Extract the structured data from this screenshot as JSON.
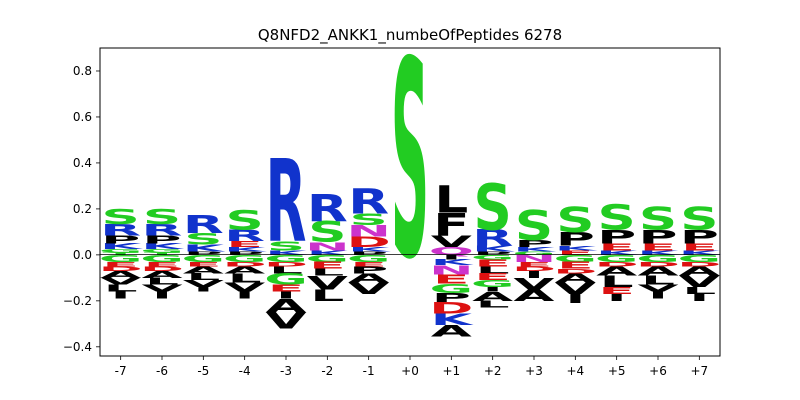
{
  "chart_data": {
    "type": "sequence-logo",
    "title": "Q8NFD2_ANKK1_numbeOfPeptides 6278",
    "xlabel": "",
    "ylabel": "",
    "ylim": [
      -0.44,
      0.9
    ],
    "yticks": [
      -0.4,
      -0.2,
      0.0,
      0.2,
      0.4,
      0.6,
      0.8
    ],
    "ytick_labels": [
      "−0.4",
      "−0.2",
      "0.0",
      "0.2",
      "0.4",
      "0.6",
      "0.8"
    ],
    "x_ticks": [
      "-7",
      "-6",
      "-5",
      "-4",
      "-3",
      "-2",
      "-1",
      "+0",
      "+1",
      "+2",
      "+3",
      "+4",
      "+5",
      "+6",
      "+7"
    ],
    "grid": false,
    "legend": "none",
    "residue_colors": {
      "S": "#22cc22",
      "G": "#22cc22",
      "T": "#22cc22",
      "Y": "#22cc22",
      "C": "#22cc22",
      "N": "#cc33cc",
      "Q": "#cc33cc",
      "R": "#1133cc",
      "K": "#1133cc",
      "H": "#1133cc",
      "D": "#dd1111",
      "E": "#dd1111",
      "P": "#000000",
      "L": "#000000",
      "V": "#000000",
      "A": "#000000",
      "I": "#000000",
      "M": "#000000",
      "F": "#000000",
      "W": "#000000"
    },
    "positions": [
      {
        "pos": "-7",
        "pos_stack": [
          {
            "aa": "S",
            "h": 0.065
          },
          {
            "aa": "R",
            "h": 0.05
          },
          {
            "aa": "P",
            "h": 0.035
          },
          {
            "aa": "K",
            "h": 0.025
          },
          {
            "aa": "G",
            "h": 0.015
          },
          {
            "aa": "T",
            "h": 0.01
          }
        ],
        "neg_stack": [
          {
            "aa": "G",
            "h": 0.03
          },
          {
            "aa": "E",
            "h": 0.02
          },
          {
            "aa": "D",
            "h": 0.02
          },
          {
            "aa": "A",
            "h": 0.03
          },
          {
            "aa": "V",
            "h": 0.03
          },
          {
            "aa": "L",
            "h": 0.03
          },
          {
            "aa": "I",
            "h": 0.03
          }
        ]
      },
      {
        "pos": "-6",
        "pos_stack": [
          {
            "aa": "S",
            "h": 0.065
          },
          {
            "aa": "R",
            "h": 0.05
          },
          {
            "aa": "P",
            "h": 0.035
          },
          {
            "aa": "K",
            "h": 0.025
          },
          {
            "aa": "G",
            "h": 0.015
          },
          {
            "aa": "T",
            "h": 0.01
          }
        ],
        "neg_stack": [
          {
            "aa": "G",
            "h": 0.03
          },
          {
            "aa": "E",
            "h": 0.02
          },
          {
            "aa": "D",
            "h": 0.02
          },
          {
            "aa": "A",
            "h": 0.03
          },
          {
            "aa": "L",
            "h": 0.03
          },
          {
            "aa": "V",
            "h": 0.03
          },
          {
            "aa": "I",
            "h": 0.03
          }
        ]
      },
      {
        "pos": "-5",
        "pos_stack": [
          {
            "aa": "R",
            "h": 0.08
          },
          {
            "aa": "S",
            "h": 0.05
          },
          {
            "aa": "K",
            "h": 0.03
          },
          {
            "aa": "P",
            "h": 0.015
          }
        ],
        "neg_stack": [
          {
            "aa": "G",
            "h": 0.03
          },
          {
            "aa": "E",
            "h": 0.02
          },
          {
            "aa": "A",
            "h": 0.03
          },
          {
            "aa": "L",
            "h": 0.03
          },
          {
            "aa": "V",
            "h": 0.03
          },
          {
            "aa": "I",
            "h": 0.02
          }
        ]
      },
      {
        "pos": "-4",
        "pos_stack": [
          {
            "aa": "S",
            "h": 0.085
          },
          {
            "aa": "R",
            "h": 0.05
          },
          {
            "aa": "E",
            "h": 0.025
          },
          {
            "aa": "K",
            "h": 0.02
          },
          {
            "aa": "P",
            "h": 0.015
          }
        ],
        "neg_stack": [
          {
            "aa": "G",
            "h": 0.03
          },
          {
            "aa": "D",
            "h": 0.02
          },
          {
            "aa": "A",
            "h": 0.03
          },
          {
            "aa": "L",
            "h": 0.04
          },
          {
            "aa": "V",
            "h": 0.04
          },
          {
            "aa": "I",
            "h": 0.03
          }
        ]
      },
      {
        "pos": "-3",
        "pos_stack": [
          {
            "aa": "R",
            "h": 0.36
          },
          {
            "aa": "S",
            "h": 0.04
          },
          {
            "aa": "K",
            "h": 0.02
          }
        ],
        "neg_stack": [
          {
            "aa": "G",
            "h": 0.03
          },
          {
            "aa": "D",
            "h": 0.02
          },
          {
            "aa": "L",
            "h": 0.03
          },
          {
            "aa": "G",
            "h": 0.05
          },
          {
            "aa": "E",
            "h": 0.03
          },
          {
            "aa": "I",
            "h": 0.03
          },
          {
            "aa": "A",
            "h": 0.06
          },
          {
            "aa": "V",
            "h": 0.07
          }
        ]
      },
      {
        "pos": "-2",
        "pos_stack": [
          {
            "aa": "R",
            "h": 0.12
          },
          {
            "aa": "S",
            "h": 0.09
          },
          {
            "aa": "N",
            "h": 0.035
          },
          {
            "aa": "K",
            "h": 0.02
          }
        ],
        "neg_stack": [
          {
            "aa": "G",
            "h": 0.03
          },
          {
            "aa": "E",
            "h": 0.03
          },
          {
            "aa": "L",
            "h": 0.03
          },
          {
            "aa": "V",
            "h": 0.06
          },
          {
            "aa": "L",
            "h": 0.05
          }
        ]
      },
      {
        "pos": "-1",
        "pos_stack": [
          {
            "aa": "R",
            "h": 0.11
          },
          {
            "aa": "S",
            "h": 0.05
          },
          {
            "aa": "N",
            "h": 0.05
          },
          {
            "aa": "D",
            "h": 0.045
          },
          {
            "aa": "K",
            "h": 0.02
          },
          {
            "aa": "P",
            "h": 0.015
          }
        ],
        "neg_stack": [
          {
            "aa": "G",
            "h": 0.03
          },
          {
            "aa": "E",
            "h": 0.02
          },
          {
            "aa": "P",
            "h": 0.03
          },
          {
            "aa": "A",
            "h": 0.04
          },
          {
            "aa": "V",
            "h": 0.05
          }
        ]
      },
      {
        "pos": "+0",
        "pos_stack": [
          {
            "aa": "S",
            "h": 0.86
          }
        ],
        "neg_stack": []
      },
      {
        "pos": "+1",
        "pos_stack": [
          {
            "aa": "L",
            "h": 0.12
          },
          {
            "aa": "F",
            "h": 0.1
          },
          {
            "aa": "V",
            "h": 0.05
          },
          {
            "aa": "Q",
            "h": 0.035
          }
        ],
        "neg_stack": [
          {
            "aa": "I",
            "h": 0.02
          },
          {
            "aa": "K",
            "h": 0.025
          },
          {
            "aa": "N",
            "h": 0.04
          },
          {
            "aa": "E",
            "h": 0.04
          },
          {
            "aa": "G",
            "h": 0.04
          },
          {
            "aa": "P",
            "h": 0.04
          },
          {
            "aa": "D",
            "h": 0.05
          },
          {
            "aa": "K",
            "h": 0.05
          },
          {
            "aa": "A",
            "h": 0.05
          }
        ]
      },
      {
        "pos": "+2",
        "pos_stack": [
          {
            "aa": "S",
            "h": 0.2
          },
          {
            "aa": "R",
            "h": 0.07
          },
          {
            "aa": "K",
            "h": 0.025
          },
          {
            "aa": "P",
            "h": 0.015
          }
        ],
        "neg_stack": [
          {
            "aa": "G",
            "h": 0.02
          },
          {
            "aa": "E",
            "h": 0.03
          },
          {
            "aa": "L",
            "h": 0.03
          },
          {
            "aa": "E",
            "h": 0.03
          },
          {
            "aa": "G",
            "h": 0.03
          },
          {
            "aa": "I",
            "h": 0.02
          },
          {
            "aa": "A",
            "h": 0.04
          },
          {
            "aa": "L",
            "h": 0.03
          }
        ]
      },
      {
        "pos": "+3",
        "pos_stack": [
          {
            "aa": "S",
            "h": 0.13
          },
          {
            "aa": "P",
            "h": 0.03
          },
          {
            "aa": "K",
            "h": 0.02
          },
          {
            "aa": "G",
            "h": 0.015
          }
        ],
        "neg_stack": [
          {
            "aa": "N",
            "h": 0.03
          },
          {
            "aa": "E",
            "h": 0.02
          },
          {
            "aa": "D",
            "h": 0.02
          },
          {
            "aa": "I",
            "h": 0.03
          },
          {
            "aa": "V",
            "h": 0.05
          },
          {
            "aa": "A",
            "h": 0.05
          }
        ]
      },
      {
        "pos": "+4",
        "pos_stack": [
          {
            "aa": "S",
            "h": 0.11
          },
          {
            "aa": "P",
            "h": 0.06
          },
          {
            "aa": "K",
            "h": 0.02
          },
          {
            "aa": "E",
            "h": 0.02
          }
        ],
        "neg_stack": [
          {
            "aa": "G",
            "h": 0.03
          },
          {
            "aa": "E",
            "h": 0.03
          },
          {
            "aa": "D",
            "h": 0.02
          },
          {
            "aa": "A",
            "h": 0.04
          },
          {
            "aa": "V",
            "h": 0.05
          },
          {
            "aa": "I",
            "h": 0.04
          }
        ]
      },
      {
        "pos": "+5",
        "pos_stack": [
          {
            "aa": "S",
            "h": 0.11
          },
          {
            "aa": "P",
            "h": 0.06
          },
          {
            "aa": "E",
            "h": 0.03
          },
          {
            "aa": "K",
            "h": 0.02
          }
        ],
        "neg_stack": [
          {
            "aa": "G",
            "h": 0.03
          },
          {
            "aa": "D",
            "h": 0.02
          },
          {
            "aa": "A",
            "h": 0.04
          },
          {
            "aa": "L",
            "h": 0.05
          },
          {
            "aa": "E",
            "h": 0.03
          },
          {
            "aa": "I",
            "h": 0.03
          }
        ]
      },
      {
        "pos": "+6",
        "pos_stack": [
          {
            "aa": "S",
            "h": 0.1
          },
          {
            "aa": "P",
            "h": 0.06
          },
          {
            "aa": "E",
            "h": 0.03
          },
          {
            "aa": "K",
            "h": 0.02
          }
        ],
        "neg_stack": [
          {
            "aa": "G",
            "h": 0.03
          },
          {
            "aa": "D",
            "h": 0.02
          },
          {
            "aa": "A",
            "h": 0.04
          },
          {
            "aa": "L",
            "h": 0.04
          },
          {
            "aa": "V",
            "h": 0.03
          },
          {
            "aa": "I",
            "h": 0.03
          }
        ]
      },
      {
        "pos": "+7",
        "pos_stack": [
          {
            "aa": "S",
            "h": 0.1
          },
          {
            "aa": "P",
            "h": 0.06
          },
          {
            "aa": "E",
            "h": 0.03
          },
          {
            "aa": "K",
            "h": 0.02
          }
        ],
        "neg_stack": [
          {
            "aa": "G",
            "h": 0.03
          },
          {
            "aa": "D",
            "h": 0.02
          },
          {
            "aa": "A",
            "h": 0.04
          },
          {
            "aa": "V",
            "h": 0.05
          },
          {
            "aa": "L",
            "h": 0.03
          },
          {
            "aa": "I",
            "h": 0.03
          }
        ]
      }
    ]
  }
}
